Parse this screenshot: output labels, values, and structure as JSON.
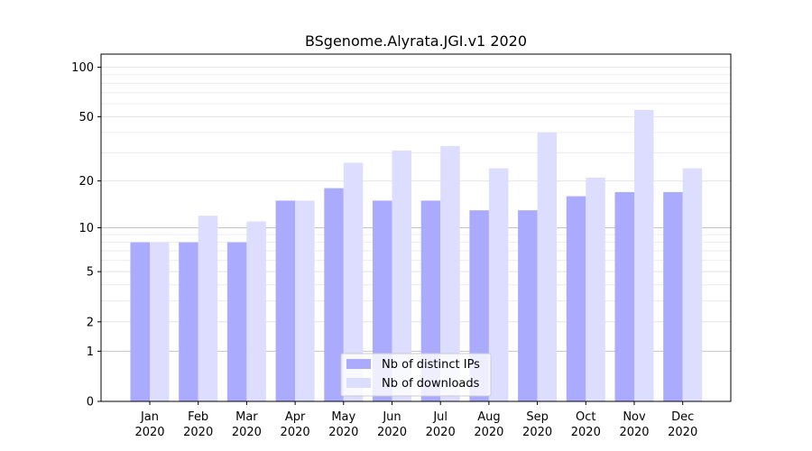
{
  "chart_data": {
    "type": "bar",
    "title": "BSgenome.Alyrata.JGI.v1 2020",
    "scale": "log1p",
    "categories": [
      [
        "Jan",
        "2020"
      ],
      [
        "Feb",
        "2020"
      ],
      [
        "Mar",
        "2020"
      ],
      [
        "Apr",
        "2020"
      ],
      [
        "May",
        "2020"
      ],
      [
        "Jun",
        "2020"
      ],
      [
        "Jul",
        "2020"
      ],
      [
        "Aug",
        "2020"
      ],
      [
        "Sep",
        "2020"
      ],
      [
        "Oct",
        "2020"
      ],
      [
        "Nov",
        "2020"
      ],
      [
        "Dec",
        "2020"
      ]
    ],
    "series": [
      {
        "name": "Nb of distinct IPs",
        "color": "#aaaaff",
        "values": [
          8,
          8,
          8,
          15,
          18,
          15,
          15,
          13,
          13,
          16,
          17,
          17
        ]
      },
      {
        "name": "Nb of downloads",
        "color": "#ddddff",
        "values": [
          8,
          12,
          11,
          15,
          26,
          31,
          33,
          24,
          40,
          21,
          55,
          24
        ]
      }
    ],
    "yticks": [
      "0",
      "1",
      "2",
      "5",
      "10",
      "20",
      "50",
      "100"
    ],
    "ylim": [
      0,
      120
    ],
    "grid": true,
    "legend": "bottom-center"
  }
}
